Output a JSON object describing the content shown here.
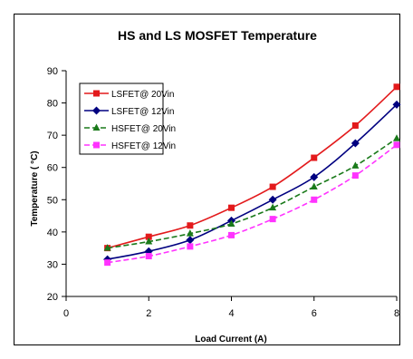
{
  "chart_data": {
    "type": "line",
    "title": "HS and LS MOSFET Temperature",
    "xlabel": "Load Current (A)",
    "ylabel": "Temperature ( °C)",
    "xlim": [
      0,
      8
    ],
    "ylim": [
      20,
      90
    ],
    "xticks": [
      "0",
      "2",
      "4",
      "6",
      "8"
    ],
    "yticks": [
      "20",
      "30",
      "40",
      "50",
      "60",
      "70",
      "80",
      "90"
    ],
    "grid": false,
    "legend_position": "top-left",
    "x": [
      1,
      2,
      3,
      4,
      5,
      6,
      7,
      8
    ],
    "series": [
      {
        "name": "LSFET@ 20Vin",
        "color": "#e31a1c",
        "dash": "solid",
        "marker": "square",
        "values": [
          35.0,
          38.5,
          42.0,
          47.5,
          54.0,
          63.0,
          73.0,
          85.0
        ]
      },
      {
        "name": "LSFET@ 12Vin",
        "color": "#000080",
        "dash": "solid",
        "marker": "diamond",
        "values": [
          31.5,
          34.0,
          37.5,
          43.5,
          50.0,
          57.0,
          67.5,
          79.5
        ]
      },
      {
        "name": "HSFET@ 20Vin",
        "color": "#1a7a1a",
        "dash": "dashed",
        "marker": "triangle",
        "values": [
          35.0,
          37.0,
          39.5,
          42.5,
          47.5,
          54.0,
          60.5,
          69.0
        ]
      },
      {
        "name": "HSFET@ 12Vin",
        "color": "#ff33ff",
        "dash": "dashed",
        "marker": "square",
        "values": [
          30.5,
          32.5,
          35.5,
          39.0,
          44.0,
          50.0,
          57.5,
          67.0
        ]
      }
    ]
  }
}
